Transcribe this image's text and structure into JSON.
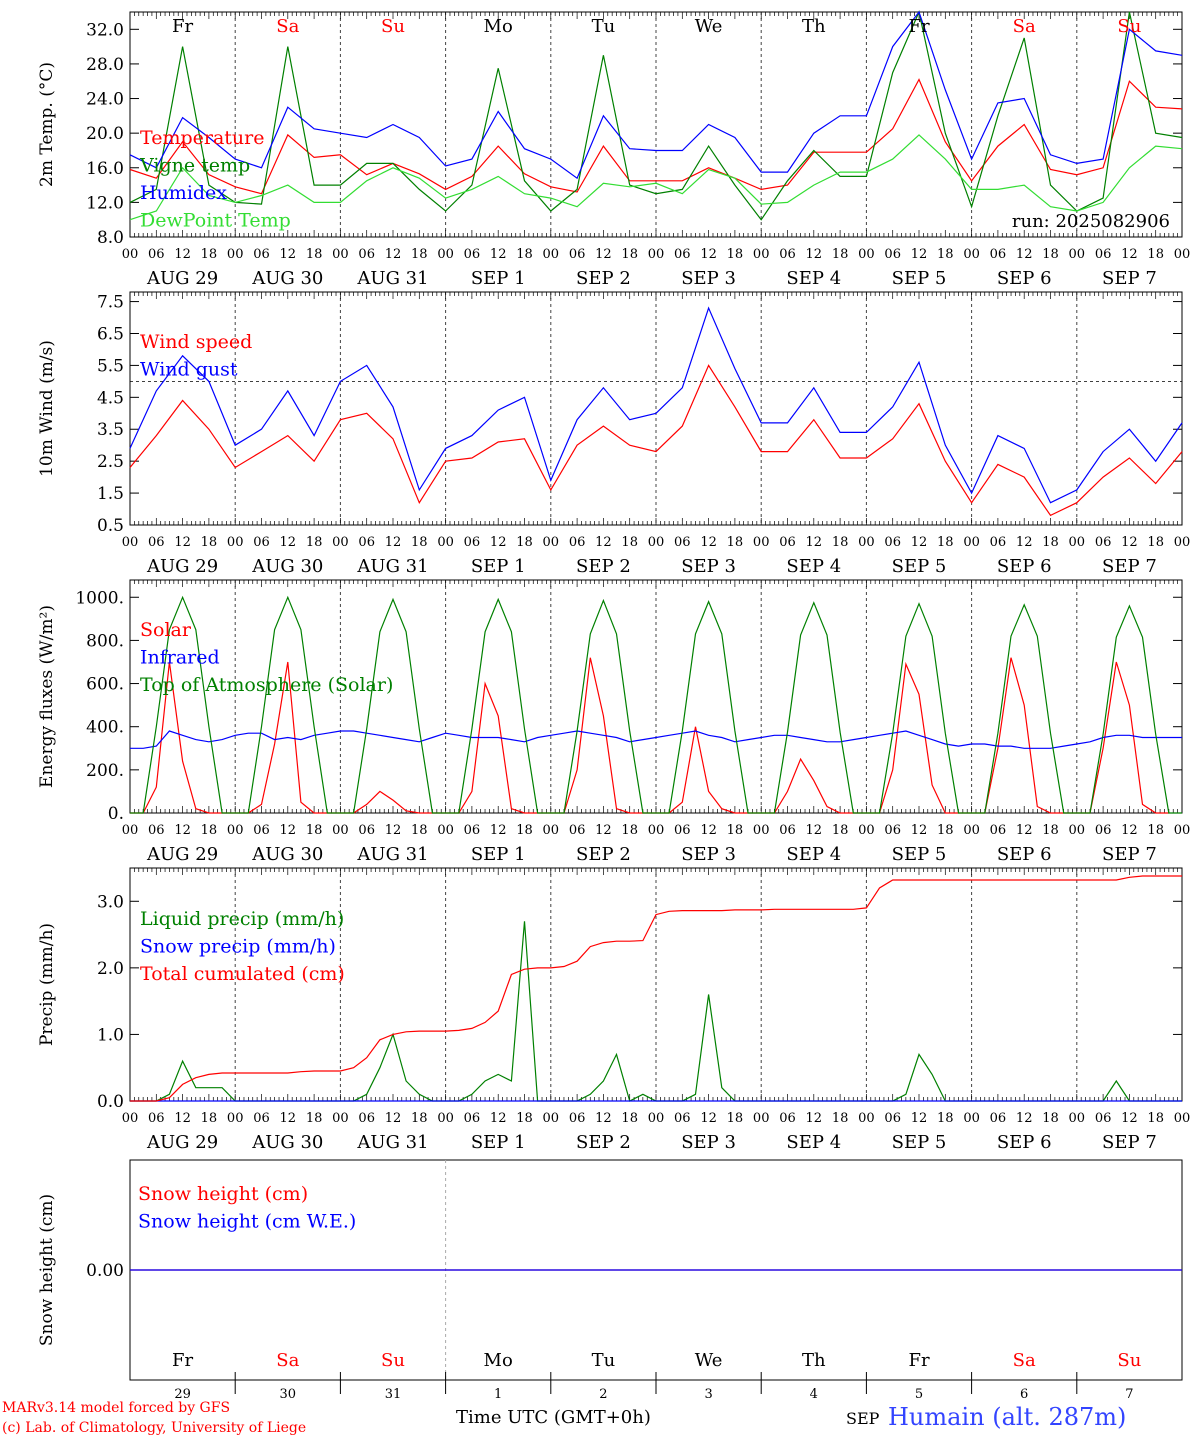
{
  "x_ticks": [
    "00",
    "06",
    "12",
    "18"
  ],
  "x_end_tick": "00",
  "dates": [
    "AUG 29",
    "AUG 30",
    "AUG 31",
    "SEP  1",
    "SEP  2",
    "SEP  3",
    "SEP  4",
    "SEP  5",
    "SEP  6",
    "SEP  7"
  ],
  "weekdays": [
    {
      "label": "Fr",
      "weekend": false
    },
    {
      "label": "Sa",
      "weekend": true
    },
    {
      "label": "Su",
      "weekend": true
    },
    {
      "label": "Mo",
      "weekend": false
    },
    {
      "label": "Tu",
      "weekend": false
    },
    {
      "label": "We",
      "weekend": false
    },
    {
      "label": "Th",
      "weekend": false
    },
    {
      "label": "Fr",
      "weekend": false
    },
    {
      "label": "Sa",
      "weekend": true
    },
    {
      "label": "Su",
      "weekend": true
    }
  ],
  "day_numbers": [
    "29",
    "30",
    "31",
    "1",
    "2",
    "3",
    "4",
    "5",
    "6",
    "7"
  ],
  "colors": {
    "red": "#ff0000",
    "green": "#008000",
    "blue": "#0000ff",
    "lightgreen": "#33dd33",
    "black": "#000000"
  },
  "footer": {
    "credit_line1": "MARv3.14 model forced by GFS",
    "credit_line2": "(c) Lab. of Climatology, University of Liege",
    "time_label": "Time UTC (GMT+0h)",
    "month_label": "SEP",
    "station": "Humain (alt. 287m)"
  },
  "chart_data": [
    {
      "type": "line",
      "ylabel": "2m Temp. (°C)",
      "ylim": [
        8,
        34
      ],
      "yticks": [
        "8.0",
        "12.0",
        "16.0",
        "20.0",
        "24.0",
        "28.0",
        "32.0"
      ],
      "run_label": "run: 2025082906",
      "legend": [
        "Temperature",
        "Vigne temp",
        "Humidex",
        "DewPoint Temp"
      ],
      "x_step_hours": 6,
      "series": [
        {
          "name": "Temperature",
          "color": "#ff0000",
          "values": [
            15.8,
            14.8,
            19.0,
            15.2,
            13.8,
            13.0,
            19.8,
            17.2,
            17.5,
            15.2,
            16.5,
            15.3,
            13.5,
            15.0,
            18.5,
            15.3,
            13.8,
            13.2,
            18.5,
            14.5,
            14.5,
            14.5,
            16.0,
            14.8,
            13.5,
            14.0,
            17.8,
            17.8,
            17.8,
            20.5,
            26.2,
            19.0,
            14.5,
            18.5,
            21.0,
            15.8,
            15.2,
            16.0,
            26.0,
            23.0,
            22.8
          ]
        },
        {
          "name": "Vigne temp",
          "color": "#008000",
          "values": [
            12.0,
            13.5,
            30.0,
            14.0,
            12.0,
            11.8,
            30.0,
            14.0,
            14.0,
            16.5,
            16.5,
            13.5,
            11.0,
            14.0,
            27.5,
            14.5,
            11.0,
            13.5,
            29.0,
            14.0,
            13.0,
            13.5,
            18.5,
            14.0,
            10.0,
            14.5,
            18.0,
            15.0,
            15.0,
            27.0,
            36.0,
            20.0,
            11.5,
            22.0,
            31.0,
            14.0,
            11.0,
            12.5,
            36.5,
            20.0,
            19.5
          ]
        },
        {
          "name": "Humidex",
          "color": "#0000ff",
          "values": [
            17.5,
            16.0,
            21.8,
            19.5,
            17.0,
            16.0,
            23.0,
            20.5,
            20.0,
            19.5,
            21.0,
            19.5,
            16.2,
            17.0,
            22.5,
            18.2,
            17.0,
            14.8,
            22.0,
            18.2,
            18.0,
            18.0,
            21.0,
            19.5,
            15.5,
            15.5,
            20.0,
            22.0,
            22.0,
            30.0,
            36.0,
            25.0,
            17.0,
            23.5,
            24.0,
            17.5,
            16.5,
            17.0,
            32.0,
            29.5,
            29.0
          ]
        },
        {
          "name": "DewPoint Temp",
          "color": "#33dd33",
          "values": [
            10.0,
            11.0,
            16.0,
            12.8,
            12.0,
            12.8,
            14.0,
            12.0,
            12.0,
            14.5,
            16.0,
            14.8,
            12.5,
            13.5,
            15.0,
            13.0,
            12.5,
            11.5,
            14.2,
            13.8,
            14.2,
            13.0,
            15.8,
            14.8,
            11.8,
            12.0,
            14.0,
            15.5,
            15.5,
            17.0,
            19.8,
            17.0,
            13.5,
            13.5,
            14.0,
            11.5,
            11.0,
            12.0,
            16.0,
            18.5,
            18.2
          ]
        }
      ]
    },
    {
      "type": "line",
      "ylabel": "10m Wind (m/s)",
      "ylim": [
        0.5,
        7.8
      ],
      "yticks": [
        "0.5",
        "1.5",
        "2.5",
        "3.5",
        "4.5",
        "5.5",
        "6.5",
        "7.5"
      ],
      "threshold": 5.0,
      "legend": [
        "Wind speed",
        "Wind gust"
      ],
      "x_step_hours": 6,
      "series": [
        {
          "name": "Wind speed",
          "color": "#ff0000",
          "values": [
            2.3,
            3.3,
            4.4,
            3.5,
            2.3,
            2.8,
            3.3,
            2.5,
            3.8,
            4.0,
            3.2,
            1.2,
            2.5,
            2.6,
            3.1,
            3.2,
            1.6,
            3.0,
            3.6,
            3.0,
            2.8,
            3.6,
            5.5,
            4.2,
            2.8,
            2.8,
            3.8,
            2.6,
            2.6,
            3.2,
            4.3,
            2.5,
            1.2,
            2.4,
            2.0,
            0.8,
            1.2,
            2.0,
            2.6,
            1.8,
            2.8
          ]
        },
        {
          "name": "Wind gust",
          "color": "#0000ff",
          "values": [
            2.9,
            4.7,
            5.8,
            5.0,
            3.0,
            3.5,
            4.7,
            3.3,
            5.0,
            5.5,
            4.2,
            1.6,
            2.9,
            3.3,
            4.1,
            4.5,
            1.9,
            3.8,
            4.8,
            3.8,
            4.0,
            4.8,
            7.3,
            5.4,
            3.7,
            3.7,
            4.8,
            3.4,
            3.4,
            4.2,
            5.6,
            3.0,
            1.5,
            3.3,
            2.9,
            1.2,
            1.6,
            2.8,
            3.5,
            2.5,
            3.7
          ]
        }
      ]
    },
    {
      "type": "line",
      "ylabel": "Energy fluxes (W/m²)",
      "ylim": [
        0,
        1080
      ],
      "yticks": [
        "0.",
        "200.",
        "400.",
        "600.",
        "800.",
        "1000."
      ],
      "legend": [
        "Solar",
        "Infrared",
        "Top of Atmosphere (Solar)"
      ],
      "x_step_hours": 3,
      "series": [
        {
          "name": "Solar",
          "color": "#ff0000",
          "values": [
            0,
            0,
            120,
            700,
            240,
            20,
            0,
            0,
            0,
            0,
            40,
            320,
            700,
            50,
            0,
            0,
            0,
            0,
            40,
            100,
            60,
            10,
            0,
            0,
            0,
            0,
            100,
            600,
            450,
            20,
            0,
            0,
            0,
            0,
            200,
            720,
            450,
            20,
            0,
            0,
            0,
            0,
            50,
            400,
            100,
            20,
            0,
            0,
            0,
            0,
            100,
            250,
            150,
            30,
            0,
            0,
            0,
            0,
            200,
            690,
            550,
            130,
            0,
            0,
            0,
            0,
            300,
            720,
            500,
            30,
            0,
            0,
            0,
            0,
            300,
            700,
            500,
            40,
            0,
            0
          ]
        },
        {
          "name": "Infrared",
          "color": "#0000ff",
          "values": [
            300,
            300,
            310,
            380,
            360,
            340,
            330,
            340,
            360,
            370,
            370,
            340,
            350,
            340,
            360,
            370,
            380,
            380,
            370,
            360,
            350,
            340,
            330,
            350,
            370,
            360,
            350,
            350,
            350,
            340,
            330,
            350,
            360,
            370,
            380,
            370,
            360,
            350,
            330,
            340,
            350,
            360,
            370,
            380,
            360,
            350,
            330,
            340,
            350,
            360,
            360,
            350,
            340,
            330,
            330,
            340,
            350,
            360,
            370,
            380,
            360,
            340,
            320,
            310,
            320,
            320,
            310,
            310,
            300,
            300,
            300,
            310,
            320,
            330,
            350,
            360,
            360,
            350,
            350,
            350,
            350
          ]
        },
        {
          "name": "Top of Atmosphere (Solar)",
          "color": "#008000",
          "values": [
            0,
            0,
            400,
            850,
            1000,
            850,
            400,
            0,
            0,
            0,
            400,
            850,
            1000,
            850,
            400,
            0,
            0,
            0,
            390,
            840,
            990,
            840,
            390,
            0,
            0,
            0,
            390,
            840,
            990,
            840,
            390,
            0,
            0,
            0,
            380,
            830,
            985,
            830,
            380,
            0,
            0,
            0,
            380,
            830,
            980,
            830,
            380,
            0,
            0,
            0,
            375,
            825,
            975,
            825,
            375,
            0,
            0,
            0,
            370,
            820,
            970,
            820,
            370,
            0,
            0,
            0,
            370,
            820,
            965,
            820,
            370,
            0,
            0,
            0,
            365,
            815,
            960,
            815,
            365,
            0,
            0
          ]
        }
      ]
    },
    {
      "type": "line",
      "ylabel": "Precip (mm/h)",
      "ylim": [
        0,
        3.5
      ],
      "yticks": [
        "0.0",
        "1.0",
        "2.0",
        "3.0"
      ],
      "legend": [
        "Liquid precip (mm/h)",
        "Snow precip (mm/h)",
        "Total cumulated (cm)"
      ],
      "x_step_hours": 3,
      "series": [
        {
          "name": "Liquid precip (mm/h)",
          "color": "#008000",
          "values": [
            0,
            0,
            0,
            0.1,
            0.6,
            0.2,
            0.2,
            0.2,
            0,
            0,
            0,
            0,
            0,
            0,
            0,
            0,
            0,
            0,
            0.1,
            0.5,
            1.0,
            0.3,
            0.1,
            0,
            0,
            0,
            0.1,
            0.3,
            0.4,
            0.3,
            2.7,
            0,
            0,
            0,
            0,
            0.1,
            0.3,
            0.7,
            0,
            0.1,
            0,
            0,
            0,
            0.1,
            1.6,
            0.2,
            0,
            0,
            0,
            0,
            0,
            0,
            0,
            0,
            0,
            0,
            0,
            0,
            0,
            0.1,
            0.7,
            0.4,
            0,
            0,
            0,
            0,
            0,
            0,
            0,
            0,
            0,
            0,
            0,
            0,
            0,
            0.3,
            0,
            0,
            0,
            0,
            0
          ]
        },
        {
          "name": "Snow precip (mm/h)",
          "color": "#0000ff",
          "values": [
            0,
            0,
            0,
            0,
            0,
            0,
            0,
            0,
            0,
            0,
            0,
            0,
            0,
            0,
            0,
            0,
            0,
            0,
            0,
            0,
            0,
            0,
            0,
            0,
            0,
            0,
            0,
            0,
            0,
            0,
            0,
            0,
            0,
            0,
            0,
            0,
            0,
            0,
            0,
            0,
            0,
            0,
            0,
            0,
            0,
            0,
            0,
            0,
            0,
            0,
            0,
            0,
            0,
            0,
            0,
            0,
            0,
            0,
            0,
            0,
            0,
            0,
            0,
            0,
            0,
            0,
            0,
            0,
            0,
            0,
            0,
            0,
            0,
            0,
            0,
            0,
            0,
            0,
            0,
            0,
            0
          ]
        },
        {
          "name": "Total cumulated (cm)",
          "color": "#ff0000",
          "values": [
            0,
            0,
            0,
            0.05,
            0.25,
            0.35,
            0.4,
            0.42,
            0.42,
            0.42,
            0.42,
            0.42,
            0.42,
            0.44,
            0.45,
            0.45,
            0.45,
            0.5,
            0.65,
            0.92,
            1.0,
            1.04,
            1.05,
            1.05,
            1.05,
            1.06,
            1.09,
            1.18,
            1.35,
            1.9,
            1.98,
            2.0,
            2.0,
            2.02,
            2.1,
            2.32,
            2.38,
            2.4,
            2.4,
            2.41,
            2.8,
            2.85,
            2.86,
            2.86,
            2.86,
            2.86,
            2.87,
            2.87,
            2.87,
            2.88,
            2.88,
            2.88,
            2.88,
            2.88,
            2.88,
            2.88,
            2.9,
            3.2,
            3.32,
            3.32,
            3.32,
            3.32,
            3.32,
            3.32,
            3.32,
            3.32,
            3.32,
            3.32,
            3.32,
            3.32,
            3.32,
            3.32,
            3.32,
            3.32,
            3.32,
            3.32,
            3.36,
            3.38,
            3.38,
            3.38,
            3.38
          ]
        }
      ]
    },
    {
      "type": "line",
      "ylabel": "Snow height (cm)",
      "ylim": [
        -1,
        1
      ],
      "yticks": [
        "0.00"
      ],
      "legend": [
        "Snow height (cm)",
        "Snow height (cm W.E.)"
      ],
      "x_step_hours": 240,
      "series": [
        {
          "name": "Snow height (cm)",
          "color": "#ff0000",
          "values": [
            0,
            0
          ]
        },
        {
          "name": "Snow height (cm W.E.)",
          "color": "#0000ff",
          "values": [
            0,
            0
          ]
        }
      ]
    }
  ]
}
